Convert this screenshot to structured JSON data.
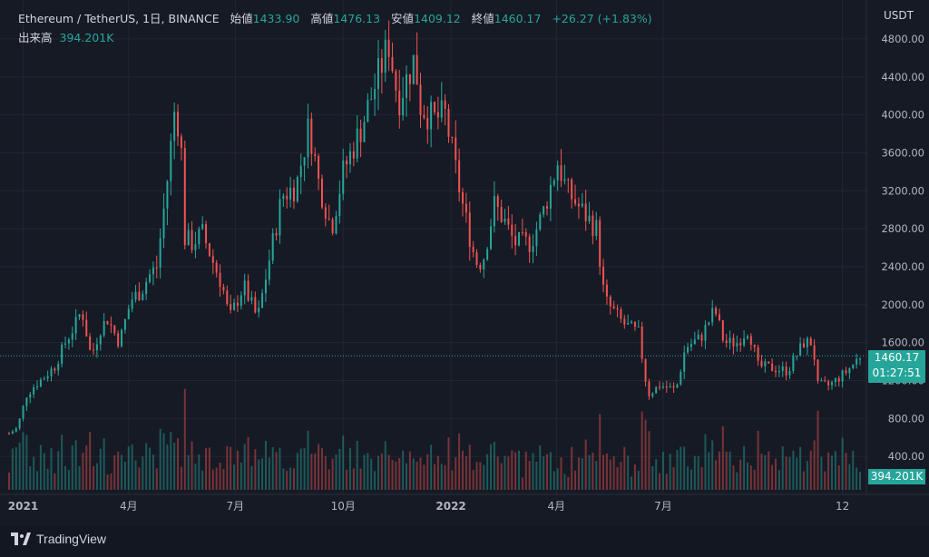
{
  "header": {
    "symbol": "Ethereum / TetherUS, 1日, BINANCE",
    "open_label": "始値",
    "open": "1433.90",
    "high_label": "高値",
    "high": "1476.13",
    "low_label": "安値",
    "low": "1409.12",
    "close_label": "終値",
    "close": "1460.17",
    "change": "+26.27 (+1.83%)",
    "volume_label": "出来高",
    "volume": "394.201K"
  },
  "currency": "USDT",
  "price_tag": {
    "price": "1460.17",
    "countdown": "01:27:51"
  },
  "volume_tag": "394.201K",
  "brand": "TradingView",
  "colors": {
    "up": "#26a69a",
    "down": "#ef5350",
    "background": "#161a25",
    "grid": "#232632",
    "text": "#b2b5be"
  },
  "chart_data": {
    "type": "candlestick",
    "ylim": [
      0,
      5000
    ],
    "y_ticks": [
      400,
      800,
      1200,
      1600,
      2000,
      2400,
      2800,
      3200,
      3600,
      4000,
      4400,
      4800
    ],
    "y_tick_labels": [
      "400.00",
      "800.00",
      "1200.00",
      "1600.00",
      "2000.00",
      "2400.00",
      "2800.00",
      "3200.00",
      "3600.00",
      "4000.00",
      "4400.00",
      "4800.00"
    ],
    "x_range": [
      "2020-12-20",
      "2022-12-16"
    ],
    "x_ticks": [
      {
        "date": "2021-01-01",
        "label": "2021",
        "bold": true
      },
      {
        "date": "2021-04-01",
        "label": "4月"
      },
      {
        "date": "2021-07-01",
        "label": "7月"
      },
      {
        "date": "2021-10-01",
        "label": "10月"
      },
      {
        "date": "2022-01-01",
        "label": "2022",
        "bold": true
      },
      {
        "date": "2022-04-01",
        "label": "4月"
      },
      {
        "date": "2022-07-01",
        "label": "7月"
      },
      {
        "date": "2022-12-01",
        "label": "12"
      }
    ],
    "last_price": 1460.17,
    "path": [
      [
        "2020-12-20",
        640
      ],
      [
        "2020-12-27",
        700
      ],
      [
        "2021-01-04",
        1050
      ],
      [
        "2021-01-11",
        1150
      ],
      [
        "2021-01-20",
        1250
      ],
      [
        "2021-01-28",
        1350
      ],
      [
        "2021-02-06",
        1600
      ],
      [
        "2021-02-15",
        1800
      ],
      [
        "2021-02-20",
        1950
      ],
      [
        "2021-02-28",
        1450
      ],
      [
        "2021-03-08",
        1750
      ],
      [
        "2021-03-14",
        1850
      ],
      [
        "2021-03-24",
        1600
      ],
      [
        "2021-04-03",
        2050
      ],
      [
        "2021-04-12",
        2150
      ],
      [
        "2021-04-18",
        2300
      ],
      [
        "2021-04-25",
        2400
      ],
      [
        "2021-05-03",
        3200
      ],
      [
        "2021-05-11",
        4150
      ],
      [
        "2021-05-16",
        3600
      ],
      [
        "2021-05-19",
        2700
      ],
      [
        "2021-05-25",
        2650
      ],
      [
        "2021-06-03",
        2750
      ],
      [
        "2021-06-12",
        2450
      ],
      [
        "2021-06-20",
        2200
      ],
      [
        "2021-06-26",
        1850
      ],
      [
        "2021-07-08",
        2200
      ],
      [
        "2021-07-20",
        1850
      ],
      [
        "2021-08-01",
        2600
      ],
      [
        "2021-08-10",
        3150
      ],
      [
        "2021-08-22",
        3250
      ],
      [
        "2021-09-02",
        3900
      ],
      [
        "2021-09-10",
        3300
      ],
      [
        "2021-09-21",
        2800
      ],
      [
        "2021-10-01",
        3400
      ],
      [
        "2021-10-16",
        3850
      ],
      [
        "2021-10-28",
        4300
      ],
      [
        "2021-11-09",
        4750
      ],
      [
        "2021-11-17",
        4150
      ],
      [
        "2021-12-01",
        4600
      ],
      [
        "2021-12-06",
        4100
      ],
      [
        "2021-12-17",
        3950
      ],
      [
        "2021-12-27",
        4000
      ],
      [
        "2022-01-10",
        3100
      ],
      [
        "2022-01-22",
        2450
      ],
      [
        "2022-01-28",
        2450
      ],
      [
        "2022-02-07",
        3050
      ],
      [
        "2022-02-15",
        2900
      ],
      [
        "2022-02-24",
        2650
      ],
      [
        "2022-03-10",
        2650
      ],
      [
        "2022-03-20",
        2950
      ],
      [
        "2022-04-02",
        3500
      ],
      [
        "2022-04-10",
        3200
      ],
      [
        "2022-04-22",
        3000
      ],
      [
        "2022-05-05",
        2800
      ],
      [
        "2022-05-12",
        2050
      ],
      [
        "2022-05-28",
        1800
      ],
      [
        "2022-06-10",
        1700
      ],
      [
        "2022-06-18",
        1050
      ],
      [
        "2022-06-28",
        1150
      ],
      [
        "2022-07-12",
        1100
      ],
      [
        "2022-07-20",
        1550
      ],
      [
        "2022-08-02",
        1650
      ],
      [
        "2022-08-14",
        1950
      ],
      [
        "2022-08-22",
        1600
      ],
      [
        "2022-09-02",
        1600
      ],
      [
        "2022-09-12",
        1750
      ],
      [
        "2022-09-20",
        1350
      ],
      [
        "2022-10-04",
        1330
      ],
      [
        "2022-10-15",
        1300
      ],
      [
        "2022-10-29",
        1600
      ],
      [
        "2022-11-06",
        1600
      ],
      [
        "2022-11-09",
        1150
      ],
      [
        "2022-11-20",
        1150
      ],
      [
        "2022-12-05",
        1300
      ],
      [
        "2022-12-16",
        1460
      ]
    ]
  }
}
